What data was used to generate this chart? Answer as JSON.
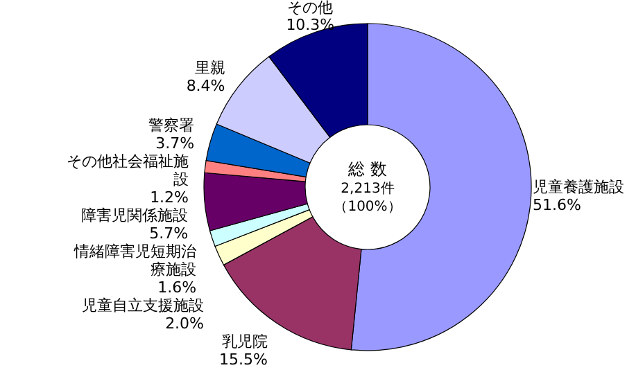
{
  "chart_data": {
    "type": "donut",
    "categories": [
      "児童養護施設",
      "乳児院",
      "児童自立支援施設",
      "情緒障害児短期治療施設",
      "障害児関係施設",
      "その他社会福祉施設",
      "警察署",
      "里親",
      "その他"
    ],
    "values": [
      51.6,
      15.5,
      2.0,
      1.6,
      5.7,
      1.2,
      3.7,
      8.4,
      10.3
    ],
    "colors": [
      "#9999ff",
      "#993366",
      "#ffffcc",
      "#ccffff",
      "#660066",
      "#ff8080",
      "#0066cc",
      "#ccccff",
      "#000080"
    ],
    "value_labels": [
      "51.6%",
      "15.5%",
      "2.0%",
      "1.6%",
      "5.7%",
      "1.2%",
      "3.7%",
      "8.4%",
      "10.3%"
    ],
    "annotations": [
      "総 数",
      "2,213件",
      "（100%）"
    ]
  }
}
